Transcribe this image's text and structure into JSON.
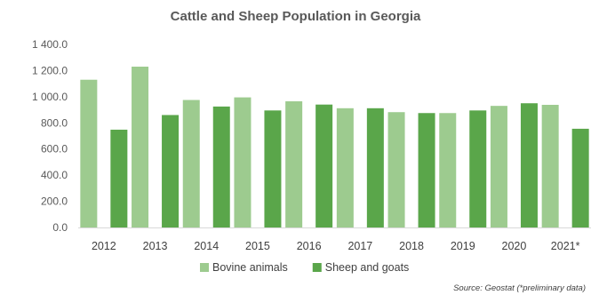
{
  "chart_data": {
    "type": "bar",
    "title": "Cattle and Sheep Population in Georgia",
    "categories": [
      "2012",
      "2013",
      "2014",
      "2015",
      "2016",
      "2017",
      "2018",
      "2019",
      "2020",
      "2021*"
    ],
    "series": [
      {
        "name": "Bovine animals",
        "color": "#9dcb8f",
        "values": [
          1130,
          1230,
          975,
          995,
          965,
          912,
          882,
          875,
          930,
          938
        ]
      },
      {
        "name": "Sheep and goats",
        "color": "#5aa64a",
        "values": [
          748,
          860,
          925,
          895,
          940,
          912,
          875,
          895,
          950,
          755
        ]
      }
    ],
    "y_ticks": [
      "0.0",
      "200.0",
      "400.0",
      "600.0",
      "800.0",
      "1 000.0",
      "1 200.0",
      "1 400.0"
    ],
    "ylim": [
      0,
      1400
    ],
    "grid": false,
    "legend_position": "bottom",
    "source": "Source: Geostat (*preliminary data)"
  }
}
